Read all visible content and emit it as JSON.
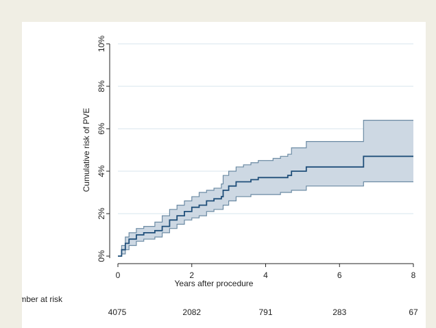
{
  "chart_data": {
    "type": "line",
    "xlabel": "Years after procedure",
    "ylabel": "Cumulative risk of PVE",
    "xlim": [
      0,
      8
    ],
    "ylim": [
      0,
      0.1
    ],
    "x_ticks": [
      0,
      2,
      4,
      6,
      8
    ],
    "x_tick_labels": [
      "0",
      "2",
      "4",
      "6",
      "8"
    ],
    "y_ticks": [
      0,
      0.02,
      0.04,
      0.06,
      0.08,
      0.1
    ],
    "y_tick_labels": [
      "0%",
      "2%",
      "4%",
      "6%",
      "8%",
      "10%"
    ],
    "grid": true,
    "legend": false,
    "series": [
      {
        "role": "estimate",
        "color": "#1f4e79",
        "x": [
          0,
          0.1,
          0.2,
          0.3,
          0.5,
          0.7,
          1.0,
          1.2,
          1.4,
          1.6,
          1.8,
          2.0,
          2.2,
          2.4,
          2.6,
          2.8,
          2.85,
          3.0,
          3.2,
          3.4,
          3.6,
          3.8,
          4.0,
          4.2,
          4.4,
          4.6,
          4.7,
          5.0,
          5.1,
          5.5,
          6.0,
          6.6,
          6.65,
          8.0
        ],
        "y": [
          0,
          0.003,
          0.006,
          0.008,
          0.01,
          0.011,
          0.012,
          0.014,
          0.017,
          0.019,
          0.021,
          0.023,
          0.024,
          0.026,
          0.027,
          0.028,
          0.031,
          0.033,
          0.035,
          0.035,
          0.036,
          0.037,
          0.037,
          0.037,
          0.037,
          0.038,
          0.04,
          0.04,
          0.042,
          0.042,
          0.042,
          0.042,
          0.047,
          0.047
        ]
      }
    ],
    "confidence_band": {
      "color": "#cdd8e3",
      "edge_color": "#6b8aa3",
      "x": [
        0,
        0.1,
        0.2,
        0.3,
        0.5,
        0.7,
        1.0,
        1.2,
        1.4,
        1.6,
        1.8,
        2.0,
        2.2,
        2.4,
        2.6,
        2.8,
        2.85,
        3.0,
        3.2,
        3.4,
        3.6,
        3.8,
        4.0,
        4.2,
        4.4,
        4.6,
        4.7,
        5.0,
        5.1,
        5.5,
        6.0,
        6.6,
        6.65,
        8.0
      ],
      "lower": [
        0,
        0.001,
        0.003,
        0.005,
        0.007,
        0.008,
        0.009,
        0.011,
        0.013,
        0.015,
        0.017,
        0.018,
        0.019,
        0.021,
        0.022,
        0.022,
        0.024,
        0.026,
        0.028,
        0.028,
        0.029,
        0.029,
        0.029,
        0.029,
        0.03,
        0.03,
        0.031,
        0.031,
        0.033,
        0.033,
        0.033,
        0.033,
        0.035,
        0.035
      ],
      "upper": [
        0,
        0.005,
        0.009,
        0.011,
        0.013,
        0.014,
        0.016,
        0.019,
        0.022,
        0.024,
        0.026,
        0.028,
        0.03,
        0.031,
        0.032,
        0.034,
        0.038,
        0.04,
        0.042,
        0.043,
        0.044,
        0.045,
        0.045,
        0.046,
        0.047,
        0.048,
        0.051,
        0.051,
        0.054,
        0.054,
        0.054,
        0.054,
        0.064,
        0.064
      ]
    }
  },
  "risk_table": {
    "title": "Number at risk",
    "times": [
      0,
      2,
      4,
      6,
      8
    ],
    "counts": [
      "4075",
      "2082",
      "791",
      "283",
      "67"
    ]
  }
}
